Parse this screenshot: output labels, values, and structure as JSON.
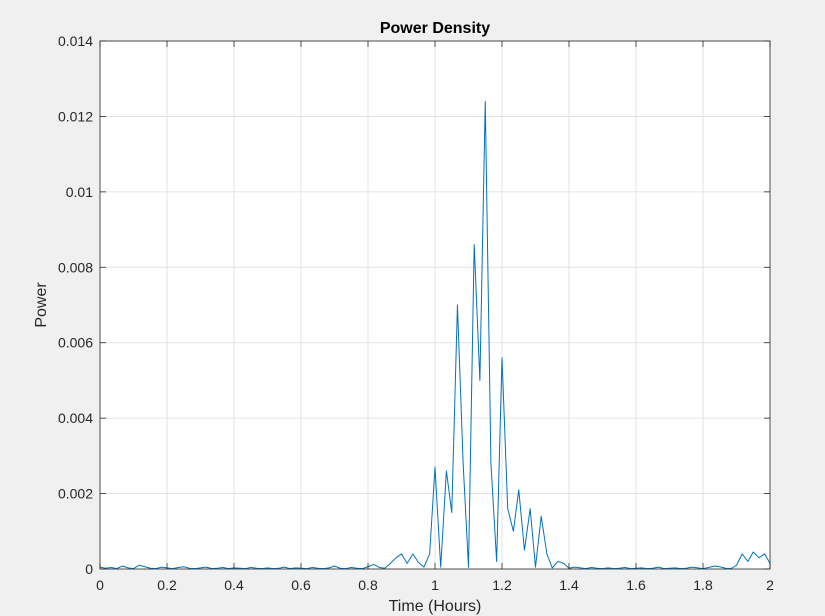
{
  "chart_data": {
    "type": "line",
    "title": "Power Density",
    "xlabel": "Time (Hours)",
    "ylabel": "Power",
    "xlim": [
      0,
      2
    ],
    "ylim": [
      0,
      0.014
    ],
    "grid": true,
    "xticks": [
      0,
      0.2,
      0.4,
      0.6,
      0.8,
      1,
      1.2,
      1.4,
      1.6,
      1.8,
      2
    ],
    "xtick_labels": [
      "0",
      "0.2",
      "0.4",
      "0.6",
      "0.8",
      "1",
      "1.2",
      "1.4",
      "1.6",
      "1.8",
      "2"
    ],
    "yticks": [
      0,
      0.002,
      0.004,
      0.006,
      0.008,
      0.01,
      0.012,
      0.014
    ],
    "ytick_labels": [
      "0",
      "0.002",
      "0.004",
      "0.006",
      "0.008",
      "0.01",
      "0.012",
      "0.014"
    ],
    "series": [
      {
        "color": "#0072bd",
        "x": [
          0,
          0.017,
          0.034,
          0.05,
          0.067,
          0.084,
          0.1,
          0.117,
          0.134,
          0.15,
          0.167,
          0.184,
          0.2,
          0.217,
          0.234,
          0.25,
          0.267,
          0.284,
          0.3,
          0.317,
          0.334,
          0.35,
          0.367,
          0.384,
          0.4,
          0.417,
          0.434,
          0.45,
          0.467,
          0.484,
          0.5,
          0.517,
          0.534,
          0.55,
          0.567,
          0.584,
          0.6,
          0.617,
          0.634,
          0.65,
          0.667,
          0.684,
          0.7,
          0.717,
          0.734,
          0.75,
          0.767,
          0.784,
          0.8,
          0.817,
          0.834,
          0.85,
          0.867,
          0.884,
          0.9,
          0.917,
          0.934,
          0.95,
          0.967,
          0.984,
          1.0,
          1.017,
          1.034,
          1.05,
          1.067,
          1.084,
          1.1,
          1.117,
          1.134,
          1.15,
          1.167,
          1.184,
          1.2,
          1.217,
          1.234,
          1.25,
          1.267,
          1.284,
          1.3,
          1.317,
          1.334,
          1.35,
          1.367,
          1.384,
          1.4,
          1.417,
          1.434,
          1.45,
          1.467,
          1.484,
          1.5,
          1.517,
          1.534,
          1.55,
          1.567,
          1.584,
          1.6,
          1.617,
          1.634,
          1.65,
          1.667,
          1.684,
          1.7,
          1.717,
          1.734,
          1.75,
          1.767,
          1.784,
          1.8,
          1.817,
          1.834,
          1.85,
          1.867,
          1.884,
          1.9,
          1.917,
          1.934,
          1.95,
          1.967,
          1.984,
          2.0
        ],
        "y": [
          5e-05,
          2e-05,
          4e-05,
          1e-05,
          8e-05,
          3e-05,
          1e-05,
          0.0001,
          6e-05,
          2e-05,
          1e-05,
          5e-05,
          3e-05,
          1e-05,
          4e-05,
          6e-05,
          2e-05,
          1e-05,
          3e-05,
          5e-05,
          1e-05,
          2e-05,
          4e-05,
          1e-05,
          3e-05,
          2e-05,
          1e-05,
          4e-05,
          2e-05,
          1e-05,
          3e-05,
          1e-05,
          2e-05,
          5e-05,
          1e-05,
          3e-05,
          2e-05,
          1e-05,
          4e-05,
          2e-05,
          1e-05,
          3e-05,
          8e-05,
          2e-05,
          1e-05,
          4e-05,
          2e-05,
          1e-05,
          6e-05,
          0.00012,
          4e-05,
          2e-05,
          0.00015,
          0.0003,
          0.0004,
          0.00015,
          0.0004,
          0.00018,
          5e-05,
          0.0004,
          0.0027,
          5e-05,
          0.0026,
          0.0015,
          0.007,
          0.0028,
          5e-05,
          0.0086,
          0.005,
          0.0124,
          0.0028,
          0.0002,
          0.0056,
          0.0016,
          0.001,
          0.0021,
          0.0005,
          0.0016,
          5e-05,
          0.0014,
          0.0004,
          3e-05,
          0.0002,
          0.00015,
          2e-05,
          5e-05,
          3e-05,
          1e-05,
          4e-05,
          2e-05,
          1e-05,
          3e-05,
          1e-05,
          2e-05,
          4e-05,
          1e-05,
          2e-05,
          3e-05,
          1e-05,
          2e-05,
          5e-05,
          1e-05,
          2e-05,
          3e-05,
          1e-05,
          2e-05,
          5e-05,
          3e-05,
          1e-05,
          4e-05,
          8e-05,
          6e-05,
          2e-05,
          1e-05,
          0.0001,
          0.0004,
          0.0002,
          0.00045,
          0.0003,
          0.0004,
          0.00015
        ]
      }
    ]
  }
}
